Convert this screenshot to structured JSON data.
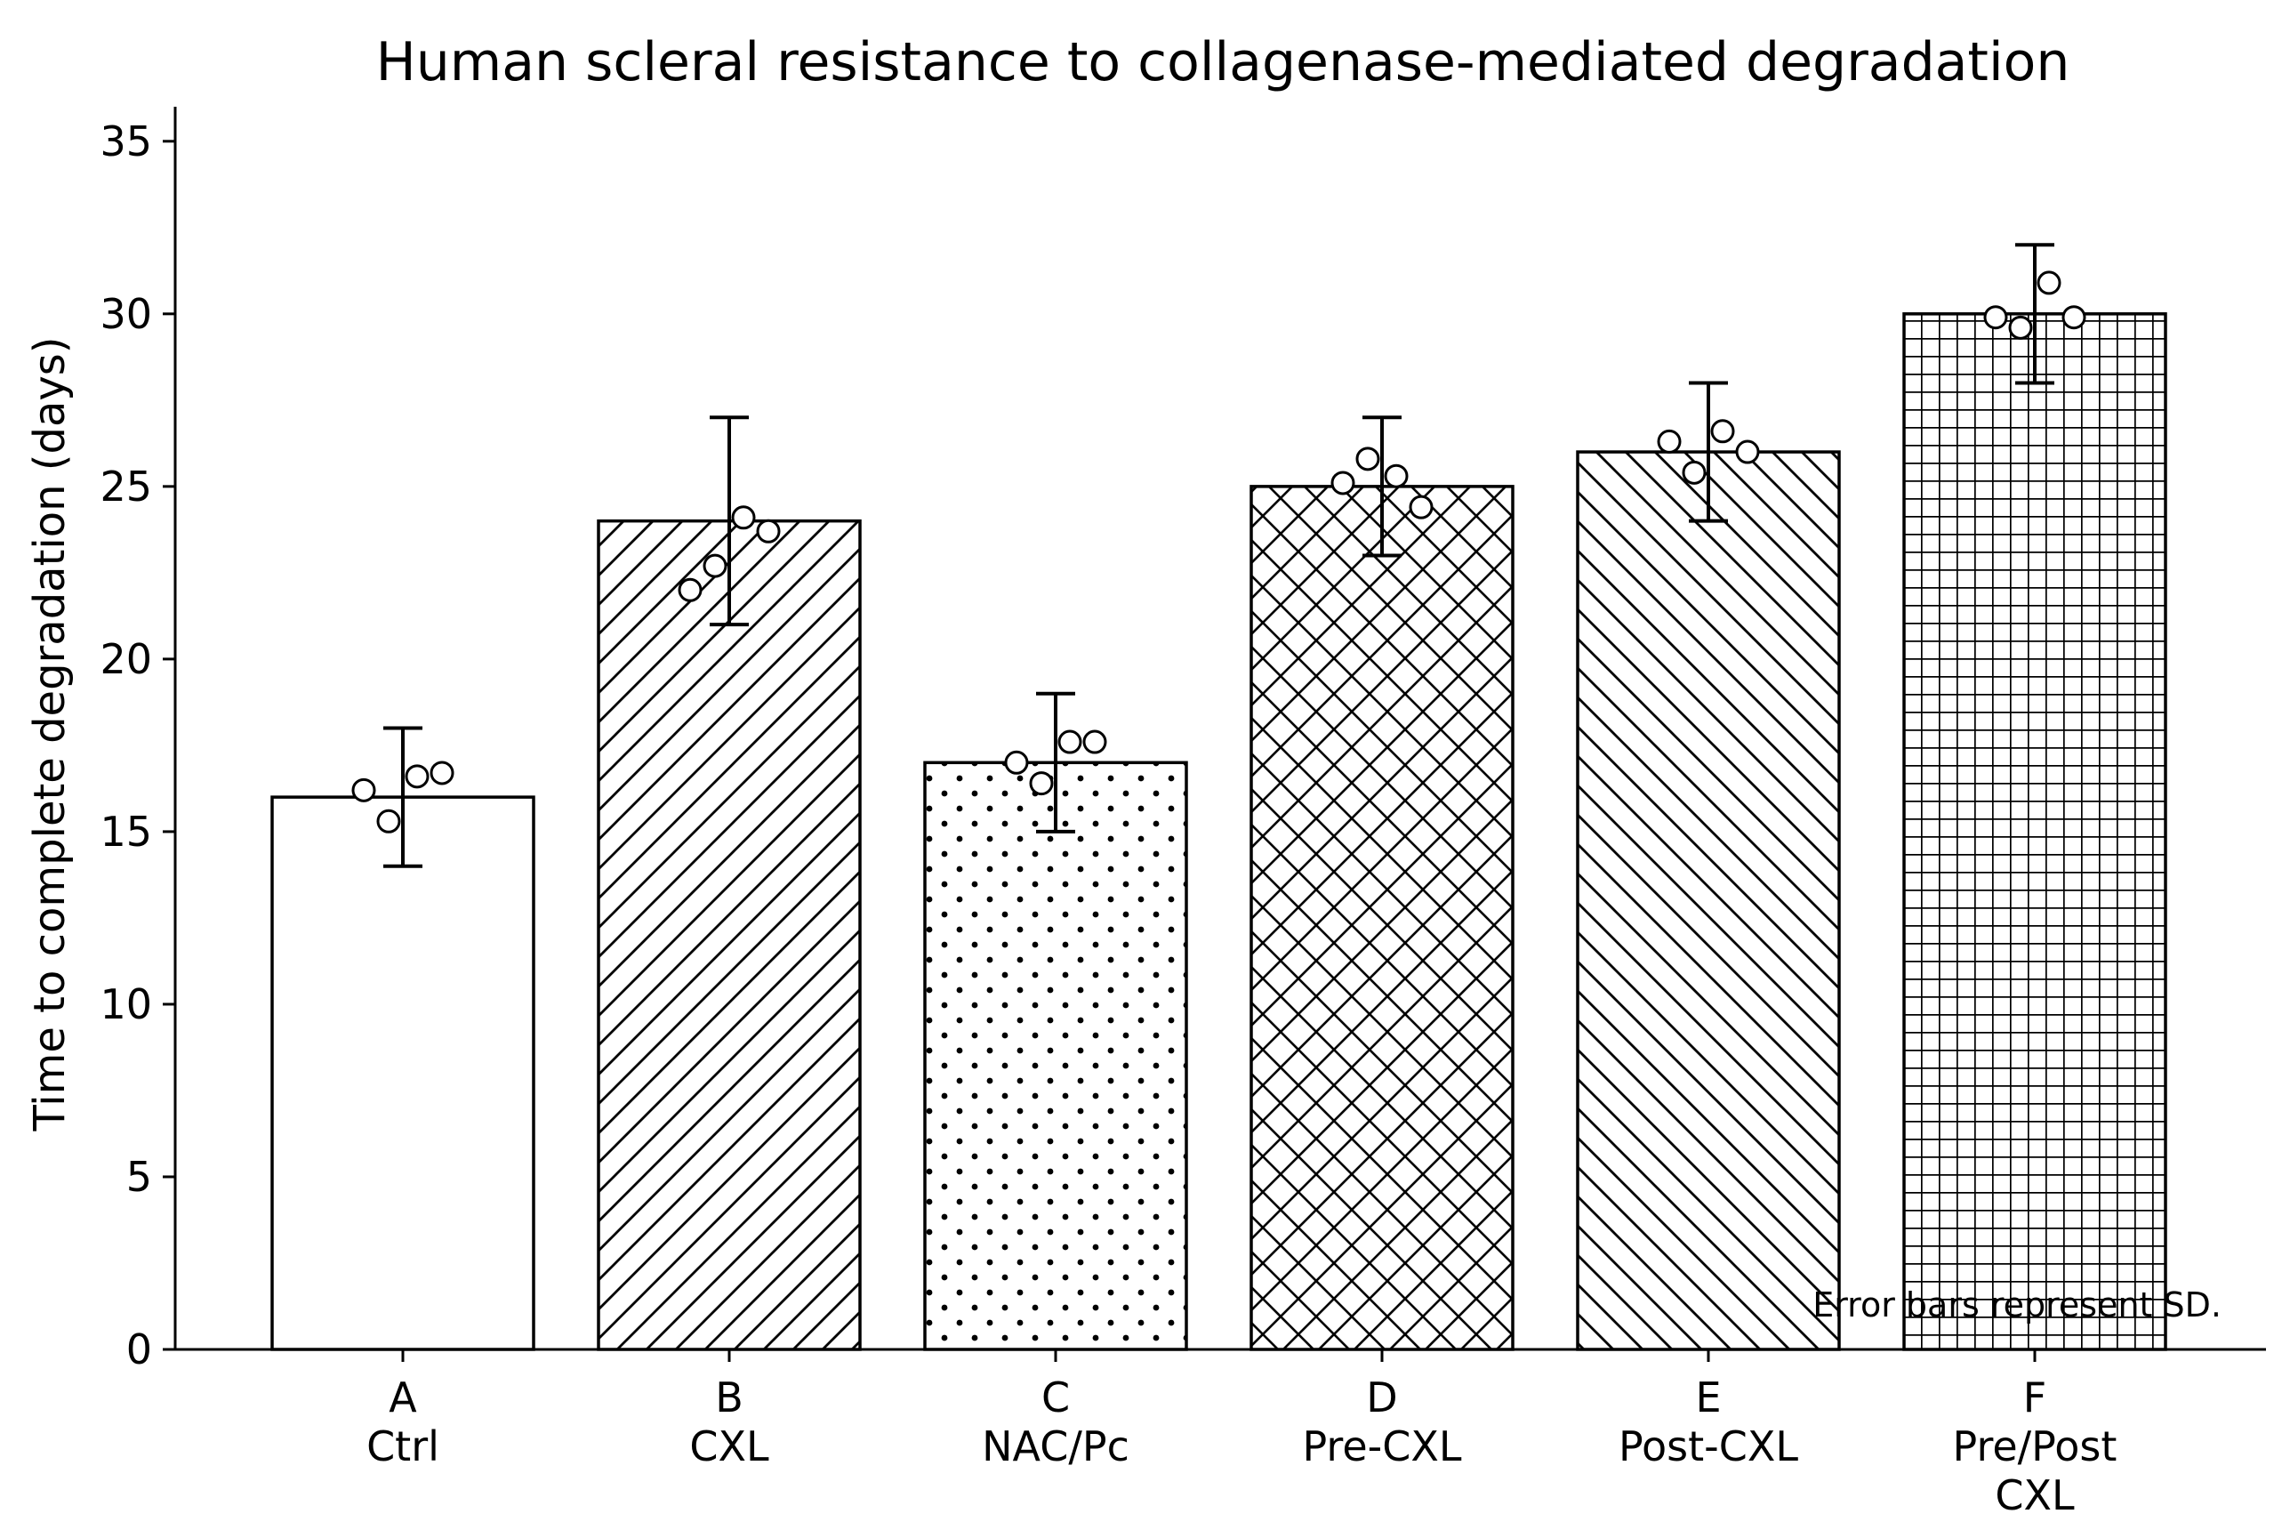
{
  "chart_data": {
    "type": "bar",
    "title": "Human scleral resistance to collagenase-mediated degradation",
    "ylabel": "Time to complete degradation (days)",
    "xlabel": "",
    "ylim": [
      0,
      36
    ],
    "yticks": [
      0,
      5,
      10,
      15,
      20,
      25,
      30,
      35
    ],
    "grid": false,
    "legend": "none",
    "categories": [
      {
        "code": "A",
        "name": "Ctrl"
      },
      {
        "code": "B",
        "name": "CXL"
      },
      {
        "code": "C",
        "name": "NAC/Pc"
      },
      {
        "code": "D",
        "name": "Pre-CXL"
      },
      {
        "code": "E",
        "name": "Post-CXL"
      },
      {
        "code": "F",
        "name": "Pre/Post\nCXL"
      }
    ],
    "values": [
      16,
      24,
      17,
      25,
      26,
      30
    ],
    "error_sd": [
      2,
      3,
      2,
      2,
      2,
      2
    ],
    "bar_hatches": [
      "none",
      "diagonal-forward",
      "dots",
      "crosshatch",
      "diagonal-back",
      "grid"
    ],
    "points": [
      [
        16.2,
        15.3,
        16.6,
        16.7
      ],
      [
        22.0,
        22.7,
        24.1,
        23.7
      ],
      [
        17.0,
        16.4,
        17.6,
        17.6
      ],
      [
        25.1,
        25.8,
        25.3,
        24.4
      ],
      [
        26.3,
        25.4,
        26.6,
        26.0
      ],
      [
        29.9,
        29.6,
        30.9,
        29.9
      ]
    ],
    "annotation": "Error bars represent SD."
  }
}
